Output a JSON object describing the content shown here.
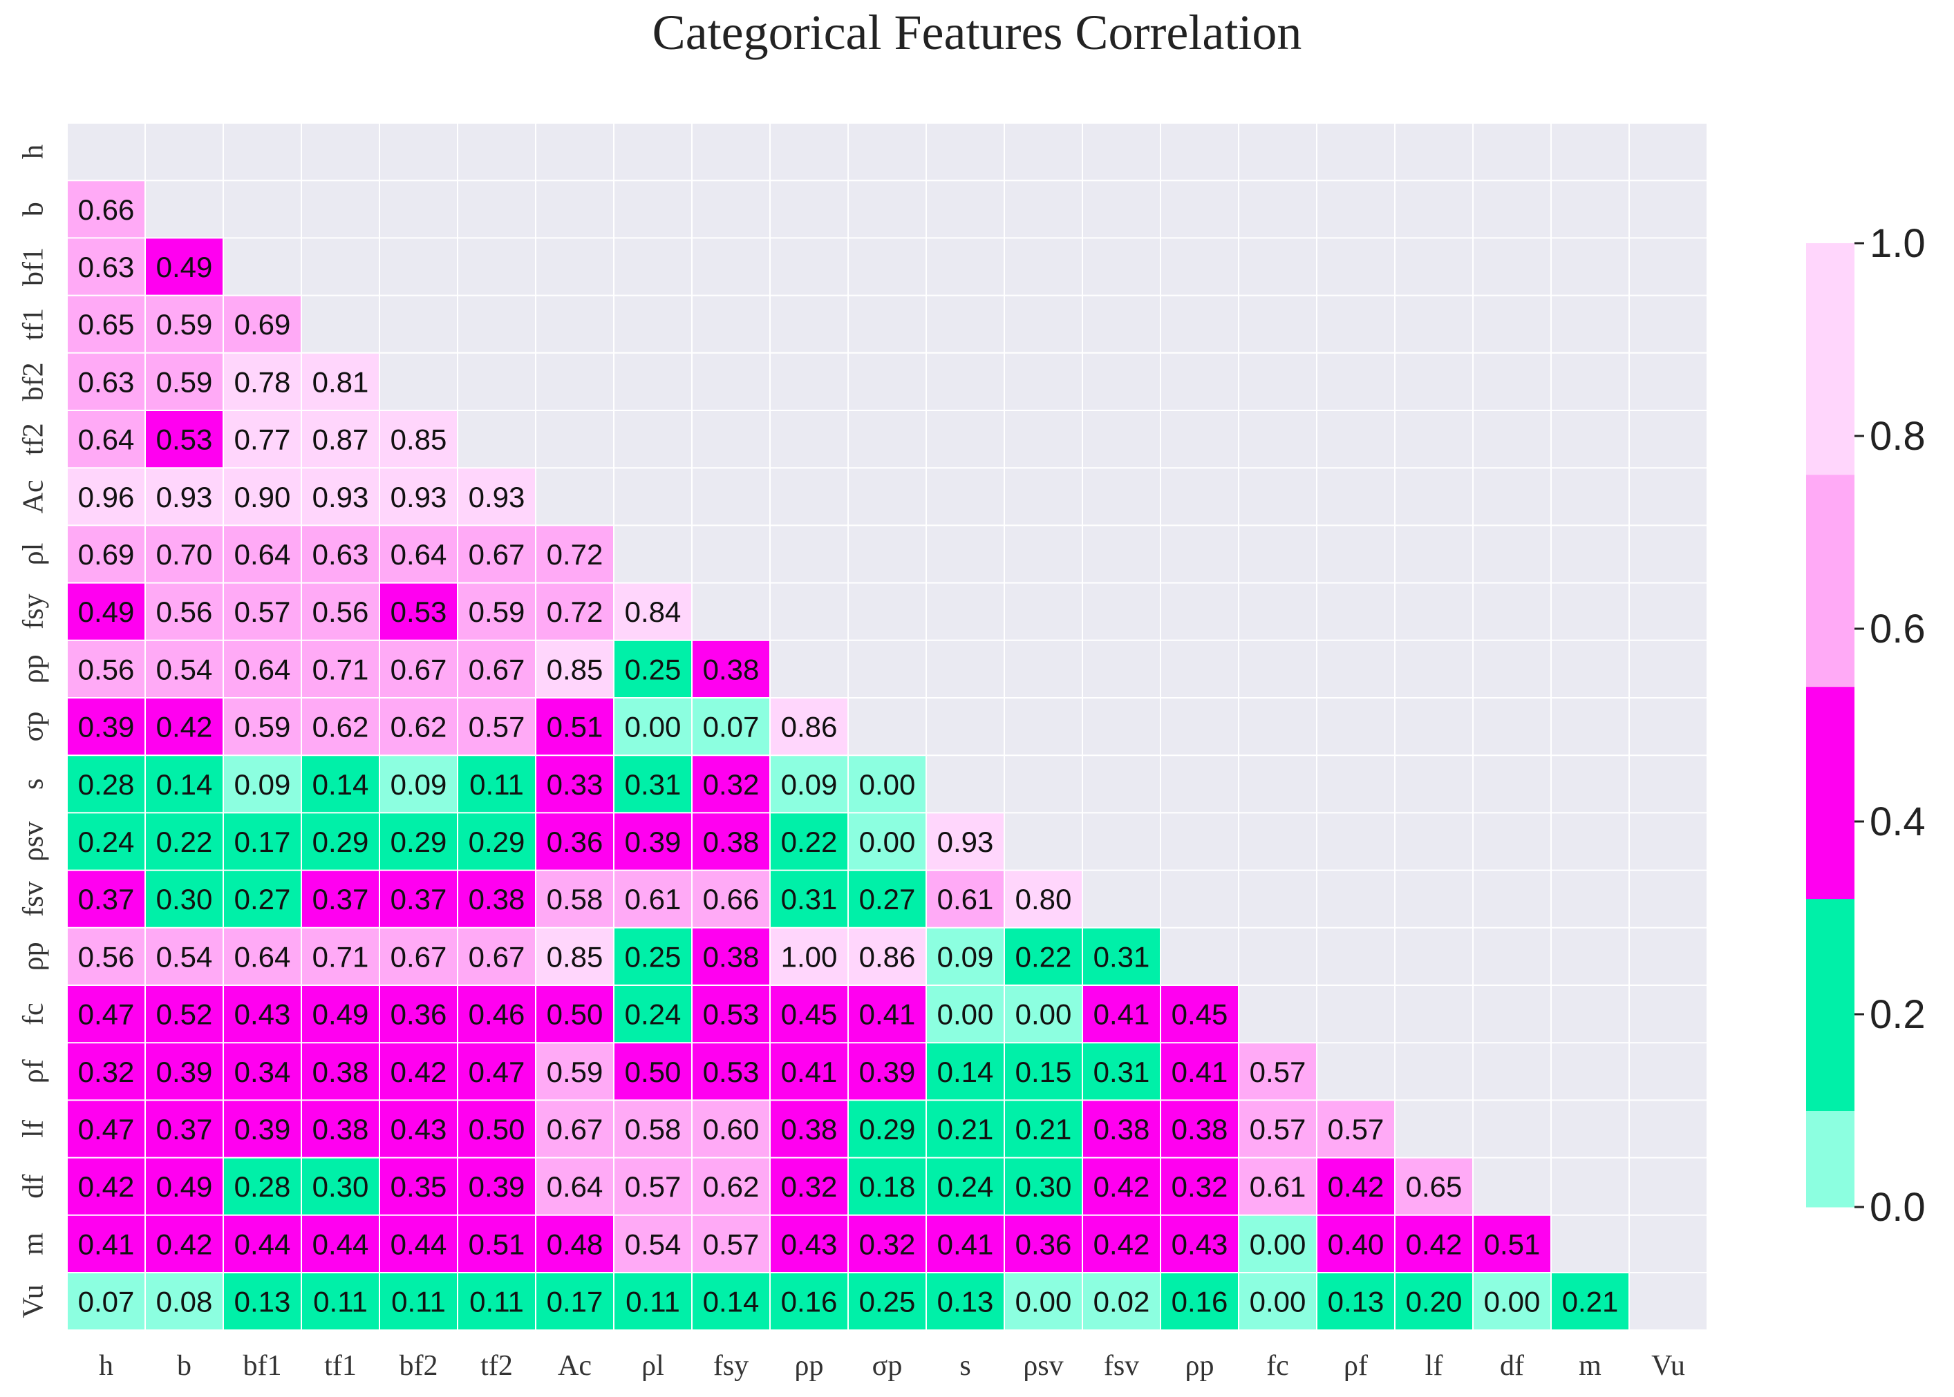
{
  "chart_data": {
    "type": "heatmap",
    "title": "Categorical Features Correlation",
    "labels": [
      "h",
      "b",
      "bf1",
      "tf1",
      "bf2",
      "tf2",
      "Ac",
      "ρl",
      "fsy",
      "ρp",
      "σp",
      "s",
      "ρsv",
      "fsv",
      "ρp",
      "fc",
      "ρf",
      "lf",
      "df",
      "m",
      "Vu"
    ],
    "matrix": [
      [],
      [
        "0.66"
      ],
      [
        "0.63",
        "0.49"
      ],
      [
        "0.65",
        "0.59",
        "0.69"
      ],
      [
        "0.63",
        "0.59",
        "0.78",
        "0.81"
      ],
      [
        "0.64",
        "0.53",
        "0.77",
        "0.87",
        "0.85"
      ],
      [
        "0.96",
        "0.93",
        "0.90",
        "0.93",
        "0.93",
        "0.93"
      ],
      [
        "0.69",
        "0.70",
        "0.64",
        "0.63",
        "0.64",
        "0.67",
        "0.72"
      ],
      [
        "0.49",
        "0.56",
        "0.57",
        "0.56",
        "0.53",
        "0.59",
        "0.72",
        "0.84"
      ],
      [
        "0.56",
        "0.54",
        "0.64",
        "0.71",
        "0.67",
        "0.67",
        "0.85",
        "0.25",
        "0.38"
      ],
      [
        "0.39",
        "0.42",
        "0.59",
        "0.62",
        "0.62",
        "0.57",
        "0.51",
        "0.00",
        "0.07",
        "0.86"
      ],
      [
        "0.28",
        "0.14",
        "0.09",
        "0.14",
        "0.09",
        "0.11",
        "0.33",
        "0.31",
        "0.32",
        "0.09",
        "0.00"
      ],
      [
        "0.24",
        "0.22",
        "0.17",
        "0.29",
        "0.29",
        "0.29",
        "0.36",
        "0.39",
        "0.38",
        "0.22",
        "0.00",
        "0.93"
      ],
      [
        "0.37",
        "0.30",
        "0.27",
        "0.37",
        "0.37",
        "0.38",
        "0.58",
        "0.61",
        "0.66",
        "0.31",
        "0.27",
        "0.61",
        "0.80"
      ],
      [
        "0.56",
        "0.54",
        "0.64",
        "0.71",
        "0.67",
        "0.67",
        "0.85",
        "0.25",
        "0.38",
        "1.00",
        "0.86",
        "0.09",
        "0.22",
        "0.31"
      ],
      [
        "0.47",
        "0.52",
        "0.43",
        "0.49",
        "0.36",
        "0.46",
        "0.50",
        "0.24",
        "0.53",
        "0.45",
        "0.41",
        "0.00",
        "0.00",
        "0.41",
        "0.45"
      ],
      [
        "0.32",
        "0.39",
        "0.34",
        "0.38",
        "0.42",
        "0.47",
        "0.59",
        "0.50",
        "0.53",
        "0.41",
        "0.39",
        "0.14",
        "0.15",
        "0.31",
        "0.41",
        "0.57"
      ],
      [
        "0.47",
        "0.37",
        "0.39",
        "0.38",
        "0.43",
        "0.50",
        "0.67",
        "0.58",
        "0.60",
        "0.38",
        "0.29",
        "0.21",
        "0.21",
        "0.38",
        "0.38",
        "0.57",
        "0.57"
      ],
      [
        "0.42",
        "0.49",
        "0.28",
        "0.30",
        "0.35",
        "0.39",
        "0.64",
        "0.57",
        "0.62",
        "0.32",
        "0.18",
        "0.24",
        "0.30",
        "0.42",
        "0.32",
        "0.61",
        "0.42",
        "0.65"
      ],
      [
        "0.41",
        "0.42",
        "0.44",
        "0.44",
        "0.44",
        "0.51",
        "0.48",
        "0.54",
        "0.57",
        "0.43",
        "0.32",
        "0.41",
        "0.36",
        "0.42",
        "0.43",
        "0.00",
        "0.40",
        "0.42",
        "0.51"
      ],
      [
        "0.07",
        "0.08",
        "0.13",
        "0.11",
        "0.11",
        "0.11",
        "0.17",
        "0.11",
        "0.14",
        "0.16",
        "0.25",
        "0.13",
        "0.00",
        "0.02",
        "0.16",
        "0.00",
        "0.13",
        "0.20",
        "0.00",
        "0.21"
      ]
    ],
    "colorbar": {
      "ticks": [
        "0.0",
        "0.2",
        "0.4",
        "0.6",
        "0.8",
        "1.0"
      ],
      "range": [
        0,
        1
      ],
      "bins": [
        {
          "from": 0.0,
          "to": 0.1,
          "color": "#8cffe0"
        },
        {
          "from": 0.1,
          "to": 0.32,
          "color": "#00f0a8"
        },
        {
          "from": 0.32,
          "to": 0.54,
          "color": "#ff00f0"
        },
        {
          "from": 0.54,
          "to": 0.76,
          "color": "#ffaaf6"
        },
        {
          "from": 0.76,
          "to": 1.0,
          "color": "#ffd6fc"
        }
      ]
    },
    "background_color": "#eaeaf2",
    "grid_color": "#ffffff"
  }
}
